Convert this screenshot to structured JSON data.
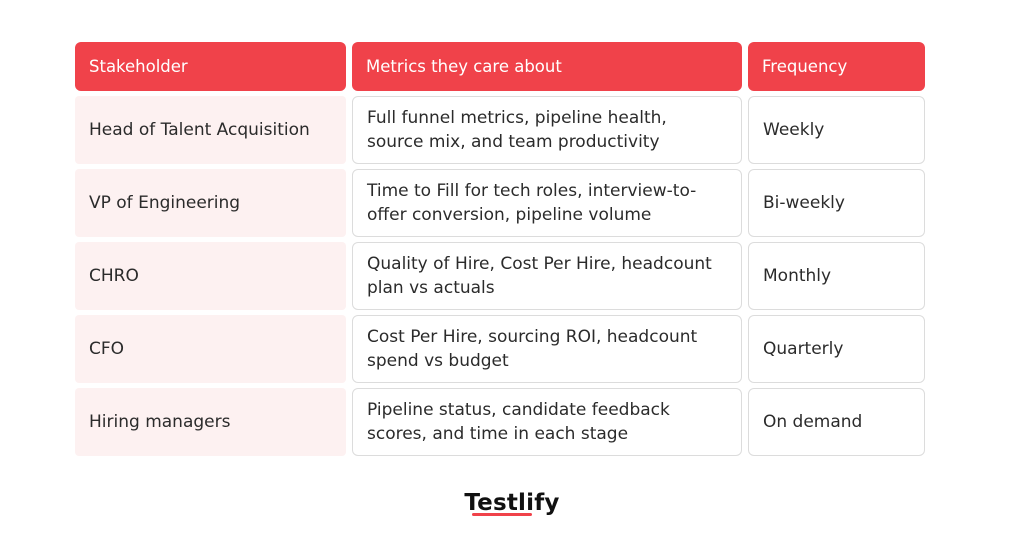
{
  "table": {
    "headers": [
      "Stakeholder",
      "Metrics they care about",
      "Frequency"
    ],
    "rows": [
      {
        "stakeholder": "Head of Talent Acquisition",
        "metrics": "Full funnel metrics, pipeline health, source mix, and team productivity",
        "frequency": "Weekly"
      },
      {
        "stakeholder": "VP of Engineering",
        "metrics": "Time to Fill for tech roles, interview-to-offer conversion, pipeline volume",
        "frequency": "Bi-weekly"
      },
      {
        "stakeholder": "CHRO",
        "metrics": "Quality of Hire, Cost Per Hire, headcount plan vs actuals",
        "frequency": "Monthly"
      },
      {
        "stakeholder": "CFO",
        "metrics": "Cost Per Hire, sourcing ROI, headcount spend vs budget",
        "frequency": "Quarterly"
      },
      {
        "stakeholder": "Hiring managers",
        "metrics": "Pipeline status, candidate feedback scores, and time in each stage",
        "frequency": "On demand"
      }
    ]
  },
  "logo": {
    "text": "Testlify"
  },
  "colors": {
    "accent": "#f0424a",
    "stakeholder_bg": "#fdf1f1"
  }
}
